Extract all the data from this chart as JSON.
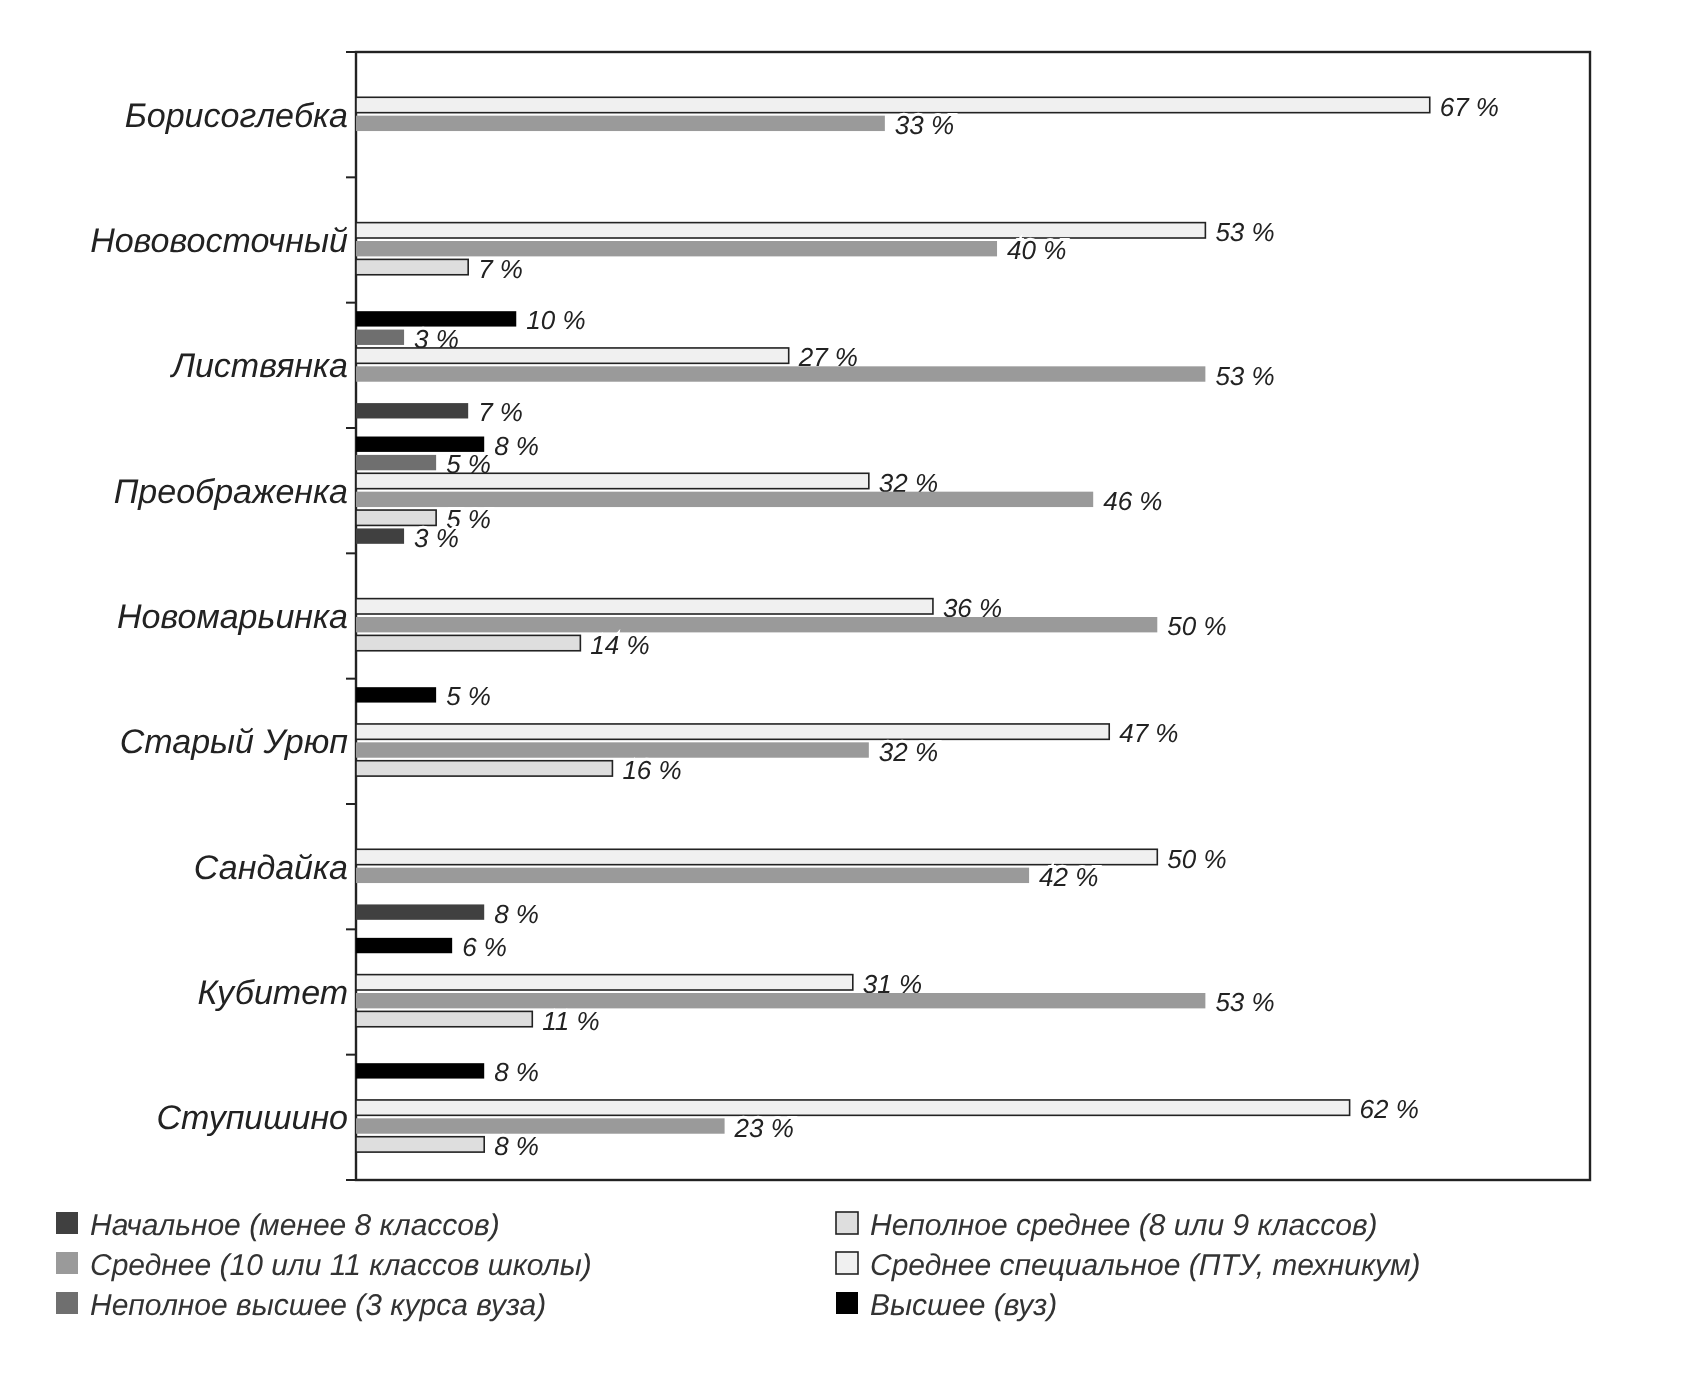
{
  "chart_data": {
    "type": "bar",
    "orientation": "horizontal",
    "categories": [
      "Борисоглебка",
      "Нововосточный",
      "Листвянка",
      "Преображенка",
      "Новомарьинка",
      "Старый Урюп",
      "Сандайка",
      "Кубитет",
      "Ступишино"
    ],
    "xlim": [
      0,
      77
    ],
    "tick_labels": "y",
    "legend": "bottom",
    "series": [
      {
        "name": "Высшее (вуз)",
        "color": "#000000",
        "values": [
          null,
          null,
          10,
          8,
          null,
          5,
          null,
          6,
          8
        ],
        "value_labels": [
          null,
          null,
          "10 %",
          "8 %",
          null,
          "5 %",
          null,
          "6 %",
          "8 %"
        ]
      },
      {
        "name": "Неполное высшее (3 курса вуза)",
        "color": "#6f6f6f",
        "values": [
          null,
          null,
          3,
          5,
          null,
          null,
          null,
          null,
          null
        ],
        "value_labels": [
          null,
          null,
          "3 %",
          "5 %",
          null,
          null,
          null,
          null,
          null
        ]
      },
      {
        "name": "Среднее специальное (ПТУ, техникум)",
        "color": "#f0f0f0",
        "values": [
          67,
          53,
          27,
          32,
          36,
          47,
          50,
          31,
          62
        ],
        "value_labels": [
          "67 %",
          "53 %",
          "27 %",
          "32 %",
          "36 %",
          "47 %",
          "50 %",
          "31 %",
          "62 %"
        ]
      },
      {
        "name": "Среднее (10 или 11 классов школы)",
        "color": "#9a9a9a",
        "values": [
          33,
          40,
          53,
          46,
          50,
          32,
          42,
          53,
          23
        ],
        "value_labels": [
          "33 %",
          "40 %",
          "53 %",
          "46 %",
          "50 %",
          "32 %",
          "42 %",
          "53 %",
          "23 %"
        ]
      },
      {
        "name": "Неполное среднее (8 или 9 классов)",
        "color": "#dedede",
        "values": [
          null,
          7,
          null,
          5,
          14,
          16,
          null,
          11,
          8
        ],
        "value_labels": [
          null,
          "7 %",
          null,
          "5 %",
          "14 %",
          "16 %",
          null,
          "11 %",
          "8 %"
        ]
      },
      {
        "name": "Начальное (менее 8 классов)",
        "color": "#404040",
        "values": [
          null,
          null,
          7,
          3,
          null,
          null,
          8,
          null,
          null
        ],
        "value_labels": [
          null,
          null,
          "7 %",
          "3 %",
          null,
          null,
          "8 %",
          null,
          null
        ]
      }
    ]
  }
}
